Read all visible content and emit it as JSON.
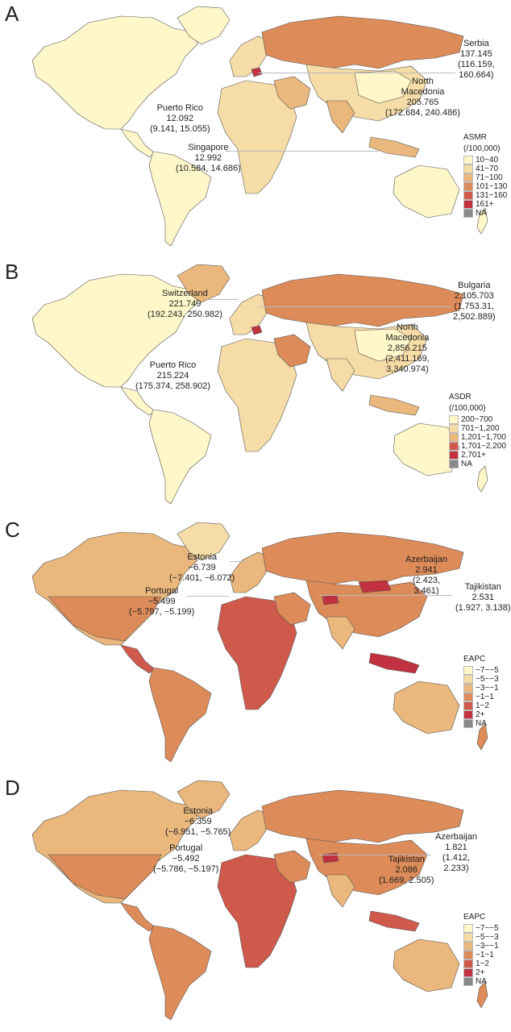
{
  "colors": {
    "ocean": "#ffffff",
    "border": "#555555",
    "c1": "#fff7c9",
    "c2": "#f6dca6",
    "c3": "#eab77c",
    "c4": "#dd8b58",
    "c5": "#cf5a4b",
    "c6": "#c2313f",
    "na": "#888888"
  },
  "panels": [
    {
      "letter": "A",
      "legend": {
        "title": "ASMR",
        "title2": "(/100,000)",
        "items": [
          "10~40",
          "41~70",
          "71~100",
          "101~130",
          "131~160",
          "161+",
          "NA"
        ]
      },
      "annotations": [
        {
          "name": "Serbia",
          "lines": [
            "Serbia",
            "137.145",
            "(116.159,",
            "160.664)"
          ]
        },
        {
          "name": "North Macedonia",
          "lines": [
            "North",
            "Macedonia",
            "205.765",
            "(172.684, 240.486)"
          ]
        },
        {
          "name": "Puerto Rico",
          "lines": [
            "Puerto Rico",
            "12.092",
            "(9.141, 15.055)"
          ]
        },
        {
          "name": "Singapore",
          "lines": [
            "Singapore",
            "12.992",
            "(10.584, 14.686)"
          ]
        }
      ]
    },
    {
      "letter": "B",
      "legend": {
        "title": "ASDR",
        "title2": "(/100,000)",
        "items": [
          "200~700",
          "701~1,200",
          "1,201~1,700",
          "1,701~2,200",
          "2,701+",
          "NA"
        ]
      },
      "annotations": [
        {
          "name": "Switzerland",
          "lines": [
            "Switzerland",
            "221.749",
            "(192.243, 250.982)"
          ]
        },
        {
          "name": "Bulgaria",
          "lines": [
            "Bulgaria",
            "2,105.703",
            "(1,753.31,",
            "2,502.889)"
          ]
        },
        {
          "name": "North Macedonia",
          "lines": [
            "North",
            "Macedonia",
            "2,856.215",
            "(2,411.169,",
            "3,340.974)"
          ]
        },
        {
          "name": "Puerto Rico",
          "lines": [
            "Puerto Rico",
            "215.224",
            "(175.374, 258.902)"
          ]
        }
      ]
    },
    {
      "letter": "C",
      "legend": {
        "title": "EAPC",
        "title2": "",
        "items": [
          "−7~−5",
          "−5~−3",
          "−3~−1",
          "−1~1",
          "1~2",
          "2+",
          "NA"
        ]
      },
      "annotations": [
        {
          "name": "Estonia",
          "lines": [
            "Estonia",
            "−6.739",
            "(−7.401, −6.072)"
          ]
        },
        {
          "name": "Azerbaijan",
          "lines": [
            "Azerbaijan",
            "2.941",
            "(2.423,",
            "3.461)"
          ]
        },
        {
          "name": "Portugal",
          "lines": [
            "Portugal",
            "−5.499",
            "(−5.797, −5.199)"
          ]
        },
        {
          "name": "Tajikistan",
          "lines": [
            "Tajikistan",
            "2.531",
            "(1.927, 3.138)"
          ]
        }
      ]
    },
    {
      "letter": "D",
      "legend": {
        "title": "EAPC",
        "title2": "",
        "items": [
          "−7~−5",
          "−5~−3",
          "−3~−1",
          "−1~1",
          "1~2",
          "2+",
          "NA"
        ]
      },
      "annotations": [
        {
          "name": "Estonia",
          "lines": [
            "Estonia",
            "−6.359",
            "(−6.951, −5.765)"
          ]
        },
        {
          "name": "Azerbaijan",
          "lines": [
            "Azerbaijan",
            "1.821",
            "(1.412,",
            "2.233)"
          ]
        },
        {
          "name": "Portugal",
          "lines": [
            "Portugal",
            "−5.492",
            "(−5.786, −5.197)"
          ]
        },
        {
          "name": "Tajikistan",
          "lines": [
            "Tajikistan",
            "2.086",
            "(1.669, 2.505)"
          ]
        }
      ]
    }
  ]
}
